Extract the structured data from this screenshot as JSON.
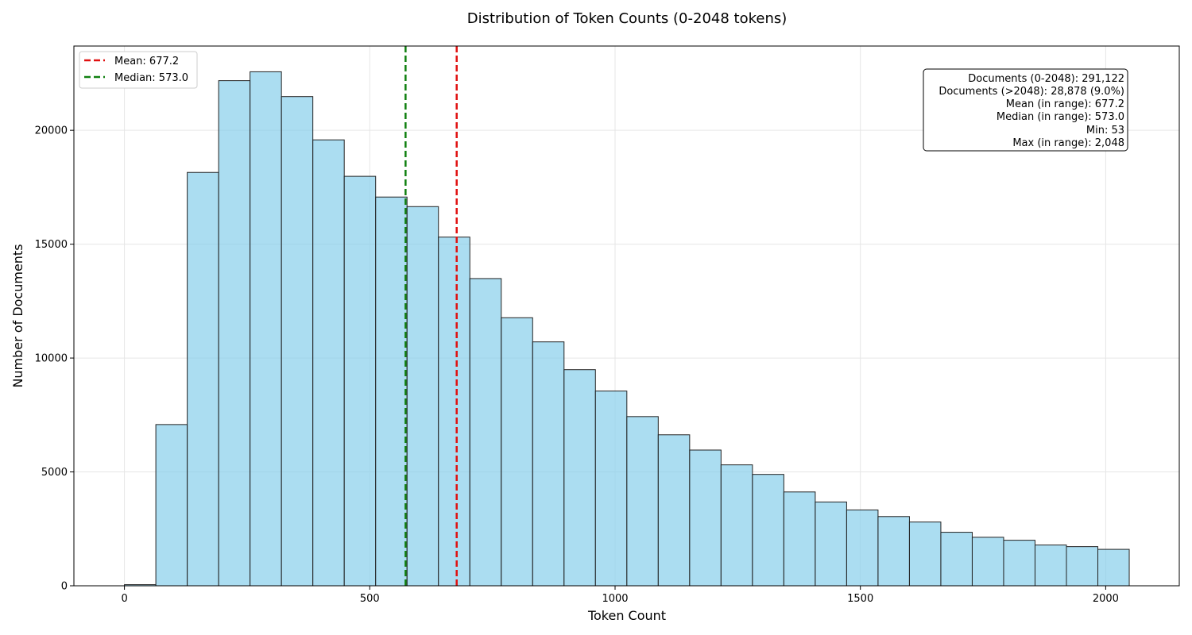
{
  "chart_data": {
    "type": "bar",
    "title": "Distribution of Token Counts (0-2048 tokens)",
    "xlabel": "Token Count",
    "ylabel": "Number of Documents",
    "xlim": [
      -103,
      2150
    ],
    "ylim": [
      0,
      23700
    ],
    "xticks": [
      0,
      500,
      1000,
      1500,
      2000
    ],
    "yticks": [
      0,
      5000,
      10000,
      15000,
      20000
    ],
    "grid": true,
    "bin_width": 64,
    "bins_start": 0,
    "values": [
      50,
      7080,
      18150,
      22180,
      22570,
      21480,
      19580,
      17980,
      17070,
      16650,
      15310,
      13490,
      11770,
      10710,
      9490,
      8550,
      7430,
      6630,
      5960,
      5310,
      4890,
      4120,
      3680,
      3330,
      3040,
      2800,
      2350,
      2130,
      2000,
      1790,
      1720,
      1600
    ],
    "colors": {
      "bar_fill": "#87CEEB",
      "bar_edge": "#222222",
      "mean": "#e01010",
      "median": "#108010"
    },
    "reference_lines": [
      {
        "name": "Mean",
        "x": 677.2,
        "label": "Mean: 677.2",
        "color": "#e01010"
      },
      {
        "name": "Median",
        "x": 573.0,
        "label": "Median: 573.0",
        "color": "#108010"
      }
    ],
    "legend_position": "top-left",
    "stats_box": {
      "position": "top-right",
      "lines": [
        "Documents (0-2048): 291,122",
        "Documents (>2048): 28,878 (9.0%)",
        "Mean (in range): 677.2",
        "Median (in range): 573.0",
        "Min: 53",
        "Max (in range): 2,048"
      ]
    }
  }
}
